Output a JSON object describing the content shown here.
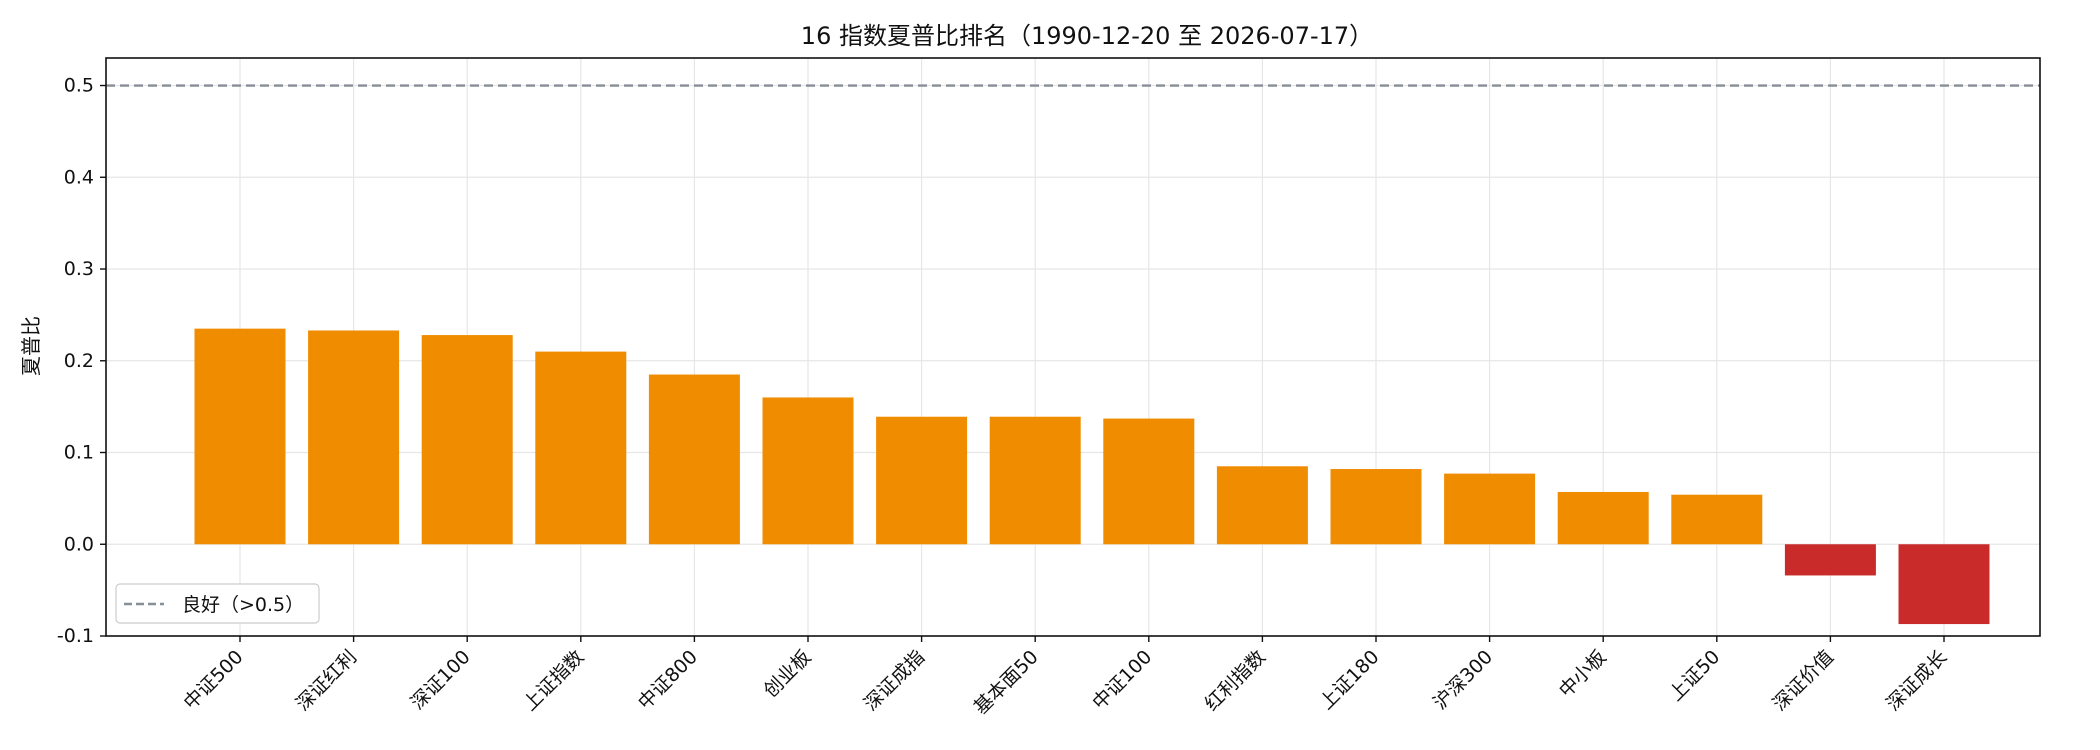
{
  "chart_data": {
    "type": "bar",
    "title": "16 指数夏普比排名（1990-12-20 至 2026-07-17）",
    "ylabel": "夏普比",
    "xlabel": "",
    "ylim": [
      -0.1,
      0.53
    ],
    "yticks": [
      "-0.1",
      "0.0",
      "0.1",
      "0.2",
      "0.3",
      "0.4",
      "0.5"
    ],
    "grid": true,
    "categories": [
      "中证500",
      "深证红利",
      "深证100",
      "上证指数",
      "中证800",
      "创业板",
      "深证成指",
      "基本面50",
      "中证100",
      "红利指数",
      "上证180",
      "沪深300",
      "中小板",
      "上证50",
      "深证价值",
      "深证成长"
    ],
    "values": [
      0.235,
      0.233,
      0.228,
      0.21,
      0.185,
      0.16,
      0.139,
      0.139,
      0.137,
      0.085,
      0.082,
      0.077,
      0.057,
      0.054,
      -0.034,
      -0.087
    ],
    "colors": {
      "positive": "#f08c00",
      "negative": "#c92a2a",
      "reference_line": "#868e96"
    },
    "reference_line": {
      "value": 0.5,
      "style": "dashed"
    },
    "legend": {
      "position": "lower-left",
      "entries": [
        "良好（>0.5）"
      ]
    }
  }
}
